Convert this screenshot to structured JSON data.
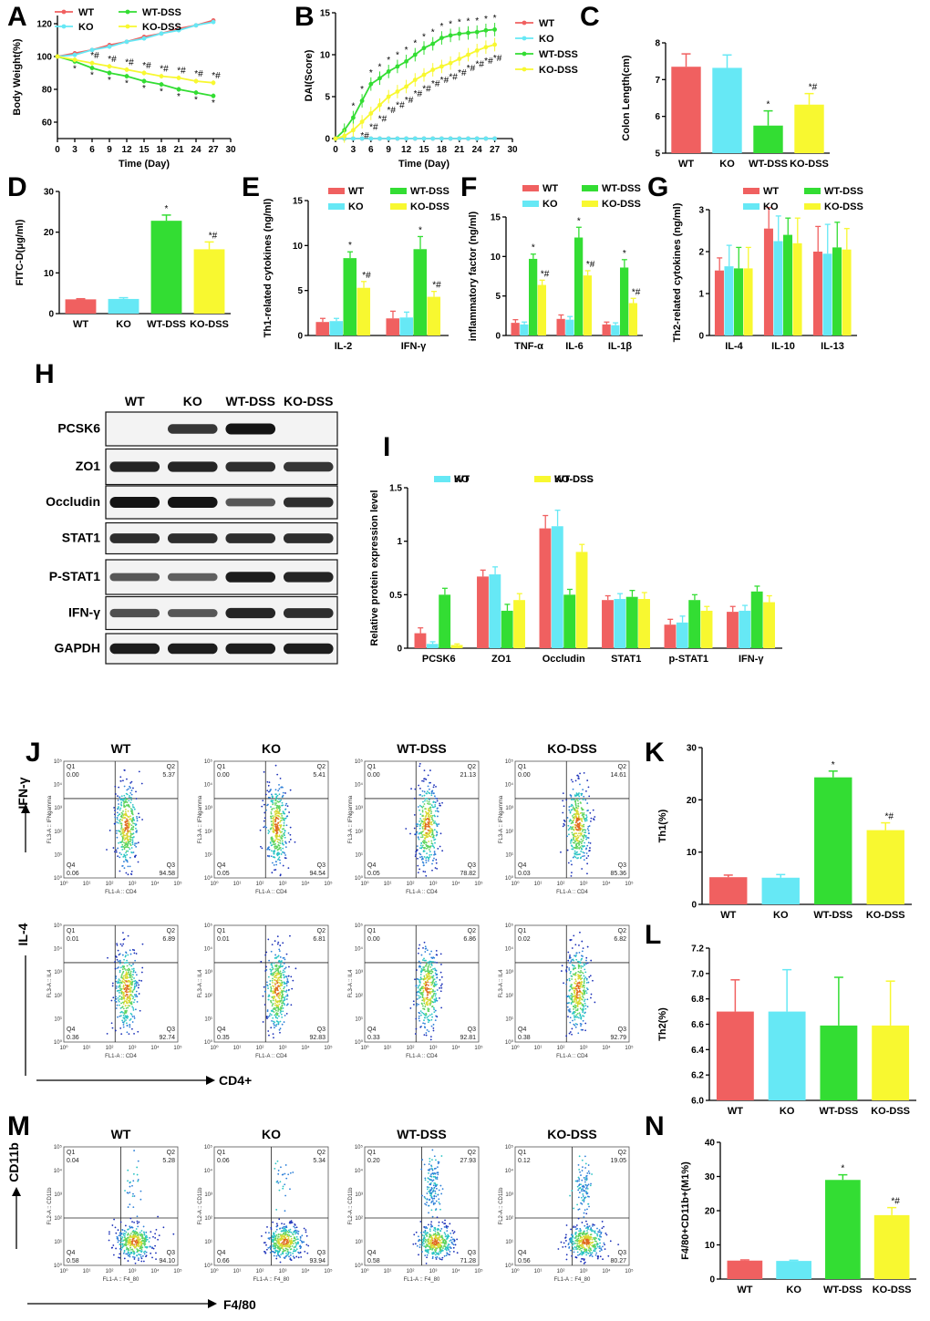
{
  "colors": {
    "WT": "#f06060",
    "KO": "#66e8f5",
    "WT-DSS": "#33dd33",
    "KO-DSS": "#f8f830"
  },
  "groups": [
    "WT",
    "KO",
    "WT-DSS",
    "KO-DSS"
  ],
  "panel_labels": [
    "A",
    "B",
    "C",
    "D",
    "E",
    "F",
    "G",
    "H",
    "I",
    "J",
    "K",
    "L",
    "M",
    "N"
  ],
  "chart_data": [
    {
      "id": "A",
      "type": "line",
      "xlabel": "Time (Day)",
      "ylabel": "Body Weight(%)",
      "xlim": [
        0,
        30
      ],
      "ylim": [
        50,
        125
      ],
      "xticks": [
        0,
        3,
        6,
        9,
        12,
        15,
        18,
        21,
        24,
        27,
        30
      ],
      "yticks": [
        60,
        80,
        100,
        120
      ],
      "x": [
        0,
        3,
        6,
        9,
        12,
        15,
        18,
        21,
        24,
        27
      ],
      "series": [
        {
          "name": "WT",
          "values": [
            100,
            102,
            104,
            107,
            109,
            112,
            114,
            117,
            119,
            122
          ]
        },
        {
          "name": "KO",
          "values": [
            100,
            101,
            104,
            106,
            109,
            111,
            114,
            116,
            119,
            121
          ]
        },
        {
          "name": "WT-DSS",
          "values": [
            100,
            97,
            93,
            90,
            88,
            85,
            83,
            80,
            78,
            76
          ]
        },
        {
          "name": "KO-DSS",
          "values": [
            100,
            98,
            96,
            94,
            92,
            90,
            88,
            87,
            85,
            84
          ]
        }
      ],
      "annotations": [
        "*",
        "*#"
      ]
    },
    {
      "id": "B",
      "type": "line",
      "xlabel": "Time (Day)",
      "ylabel": "DAI(Score)",
      "xlim": [
        0,
        30
      ],
      "ylim": [
        0,
        15
      ],
      "xticks": [
        0,
        3,
        6,
        9,
        12,
        15,
        18,
        21,
        24,
        27,
        30
      ],
      "yticks": [
        0,
        5,
        10,
        15
      ],
      "x": [
        0,
        1.5,
        3,
        4.5,
        6,
        7.5,
        9,
        10.5,
        12,
        13.5,
        15,
        16.5,
        18,
        19.5,
        21,
        22.5,
        24,
        25.5,
        27
      ],
      "series": [
        {
          "name": "WT",
          "values": [
            0,
            0,
            0,
            0,
            0,
            0,
            0,
            0,
            0,
            0,
            0,
            0,
            0,
            0,
            0,
            0,
            0,
            0,
            0
          ]
        },
        {
          "name": "KO",
          "values": [
            0,
            0,
            0,
            0,
            0,
            0,
            0,
            0,
            0,
            0,
            0,
            0,
            0,
            0,
            0,
            0,
            0,
            0,
            0
          ]
        },
        {
          "name": "WT-DSS",
          "values": [
            0,
            1,
            2.5,
            4.5,
            6.5,
            7.2,
            8,
            8.6,
            9.2,
            10,
            10.8,
            11.3,
            12,
            12.3,
            12.5,
            12.6,
            12.7,
            12.9,
            13
          ]
        },
        {
          "name": "KO-DSS",
          "values": [
            0,
            0.3,
            1,
            2,
            3,
            4,
            5,
            5.6,
            6.2,
            7,
            7.6,
            8.2,
            8.6,
            9,
            9.5,
            10,
            10.5,
            10.9,
            11.2
          ]
        }
      ],
      "annotations": [
        "*",
        "*#"
      ]
    },
    {
      "id": "C",
      "type": "bar",
      "categories": [
        "WT",
        "KO",
        "WT-DSS",
        "KO-DSS"
      ],
      "values": [
        7.35,
        7.32,
        5.75,
        6.32
      ],
      "errors": [
        0.35,
        0.35,
        0.4,
        0.3
      ],
      "ylabel": "Colon Length(cm)",
      "ylim": [
        5,
        8
      ],
      "yticks": [
        5,
        6,
        7,
        8
      ],
      "sig": [
        "",
        "",
        "*",
        "*#"
      ]
    },
    {
      "id": "D",
      "type": "bar",
      "categories": [
        "WT",
        "KO",
        "WT-DSS",
        "KO-DSS"
      ],
      "values": [
        3.5,
        3.6,
        22.8,
        15.8
      ],
      "errors": [
        0.15,
        0.3,
        1.4,
        1.8
      ],
      "ylabel": "FITC-D(μg/ml)",
      "ylim": [
        0,
        30
      ],
      "yticks": [
        0,
        10,
        20,
        30
      ],
      "sig": [
        "",
        "",
        "*",
        "*#"
      ]
    },
    {
      "id": "E",
      "type": "bar",
      "categories": [
        "IL-2",
        "IFN-γ"
      ],
      "ylabel": "Th1-related cytokines  (ng/ml)",
      "ylim": [
        0,
        15
      ],
      "yticks": [
        0,
        5,
        10,
        15
      ],
      "series": [
        {
          "name": "WT",
          "values": [
            1.5,
            1.9
          ],
          "errors": [
            0.4,
            0.8
          ]
        },
        {
          "name": "KO",
          "values": [
            1.6,
            2.0
          ],
          "errors": [
            0.3,
            0.6
          ]
        },
        {
          "name": "WT-DSS",
          "values": [
            8.6,
            9.6
          ],
          "errors": [
            0.7,
            1.4
          ]
        },
        {
          "name": "KO-DSS",
          "values": [
            5.3,
            4.3
          ],
          "errors": [
            0.7,
            0.6
          ]
        }
      ],
      "sig": [
        "",
        "",
        "*",
        "*#"
      ]
    },
    {
      "id": "F",
      "type": "bar",
      "categories": [
        "TNF-α",
        "IL-6",
        "IL-1β"
      ],
      "ylabel": "inflammatory factor  (ng/ml)",
      "ylim": [
        0,
        15
      ],
      "yticks": [
        0,
        5,
        10,
        15
      ],
      "series": [
        {
          "name": "WT",
          "values": [
            1.6,
            2.1,
            1.4
          ],
          "errors": [
            0.4,
            0.5,
            0.3
          ]
        },
        {
          "name": "KO",
          "values": [
            1.4,
            2.0,
            1.3
          ],
          "errors": [
            0.3,
            0.4,
            0.3
          ]
        },
        {
          "name": "WT-DSS",
          "values": [
            9.7,
            12.4,
            8.6
          ],
          "errors": [
            0.6,
            1.3,
            1.0
          ]
        },
        {
          "name": "KO-DSS",
          "values": [
            6.4,
            7.6,
            4.1
          ],
          "errors": [
            0.6,
            0.6,
            0.6
          ]
        }
      ],
      "sig": [
        "",
        "",
        "*",
        "*#"
      ]
    },
    {
      "id": "G",
      "type": "bar",
      "categories": [
        "IL-4",
        "IL-10",
        "IL-13"
      ],
      "ylabel": "Th2-related cytokines  (ng/ml)",
      "ylim": [
        0,
        3
      ],
      "yticks": [
        0,
        1,
        2,
        3
      ],
      "series": [
        {
          "name": "WT",
          "values": [
            1.55,
            2.55,
            2.0
          ],
          "errors": [
            0.3,
            0.5,
            0.6
          ]
        },
        {
          "name": "KO",
          "values": [
            1.65,
            2.25,
            1.95
          ],
          "errors": [
            0.5,
            0.6,
            0.7
          ]
        },
        {
          "name": "WT-DSS",
          "values": [
            1.6,
            2.4,
            2.1
          ],
          "errors": [
            0.5,
            0.4,
            0.6
          ]
        },
        {
          "name": "KO-DSS",
          "values": [
            1.6,
            2.2,
            2.05
          ],
          "errors": [
            0.5,
            0.6,
            0.5
          ]
        }
      ]
    },
    {
      "id": "I",
      "type": "bar",
      "categories": [
        "PCSK6",
        "ZO1",
        "Occludin",
        "STAT1",
        "p-STAT1",
        "IFN-γ"
      ],
      "ylabel": "Relative protein expression level",
      "ylim": [
        0,
        1.5
      ],
      "yticks": [
        0.0,
        0.5,
        1.0,
        1.5
      ],
      "series": [
        {
          "name": "WT",
          "values": [
            0.14,
            0.67,
            1.12,
            0.45,
            0.22,
            0.34
          ],
          "errors": [
            0.05,
            0.06,
            0.12,
            0.04,
            0.05,
            0.05
          ]
        },
        {
          "name": "KO",
          "values": [
            0.04,
            0.69,
            1.14,
            0.46,
            0.24,
            0.35
          ],
          "errors": [
            0.02,
            0.07,
            0.15,
            0.05,
            0.06,
            0.05
          ]
        },
        {
          "name": "WT-DSS",
          "values": [
            0.5,
            0.35,
            0.5,
            0.48,
            0.45,
            0.53
          ],
          "errors": [
            0.06,
            0.06,
            0.05,
            0.06,
            0.05,
            0.05
          ]
        },
        {
          "name": "KO-DSS",
          "values": [
            0.03,
            0.45,
            0.9,
            0.46,
            0.35,
            0.43
          ],
          "errors": [
            0.01,
            0.06,
            0.07,
            0.06,
            0.04,
            0.06
          ]
        }
      ]
    },
    {
      "id": "K",
      "type": "bar",
      "categories": [
        "WT",
        "KO",
        "WT-DSS",
        "KO-DSS"
      ],
      "values": [
        5.2,
        5.1,
        24.3,
        14.2
      ],
      "errors": [
        0.4,
        0.6,
        1.2,
        1.4
      ],
      "ylabel": "Th1(%)",
      "ylim": [
        0,
        30
      ],
      "yticks": [
        0,
        10,
        20,
        30
      ],
      "sig": [
        "",
        "",
        "*",
        "*#"
      ]
    },
    {
      "id": "L",
      "type": "bar",
      "categories": [
        "WT",
        "KO",
        "WT-DSS",
        "KO-DSS"
      ],
      "values": [
        6.7,
        6.7,
        6.59,
        6.59
      ],
      "errors": [
        0.25,
        0.33,
        0.38,
        0.35
      ],
      "ylabel": "Th2(%)",
      "ylim": [
        6.0,
        7.2
      ],
      "yticks": [
        6.0,
        6.2,
        6.4,
        6.6,
        6.8,
        7.0,
        7.2
      ]
    },
    {
      "id": "N",
      "type": "bar",
      "categories": [
        "WT",
        "KO",
        "WT-DSS",
        "KO-DSS"
      ],
      "values": [
        5.4,
        5.3,
        29.0,
        18.7
      ],
      "errors": [
        0.2,
        0.2,
        1.5,
        2.2
      ],
      "ylabel": "F4/80+CD11b+(M1%)",
      "ylim": [
        0,
        40
      ],
      "yticks": [
        0,
        10,
        20,
        30,
        40
      ],
      "sig": [
        "",
        "",
        "*",
        "*#"
      ]
    }
  ],
  "blot": {
    "lanes": [
      "WT",
      "KO",
      "WT-DSS",
      "KO-DSS"
    ],
    "rows": [
      {
        "label": "PCSK6",
        "bands": [
          0,
          0.8,
          1.0,
          0
        ]
      },
      {
        "label": "ZO1",
        "bands": [
          0.9,
          0.9,
          0.85,
          0.8
        ]
      },
      {
        "label": "Occludin",
        "bands": [
          1.0,
          1.0,
          0.6,
          0.85
        ]
      },
      {
        "label": "STAT1",
        "bands": [
          0.85,
          0.85,
          0.85,
          0.85
        ]
      },
      {
        "label": "P-STAT1",
        "bands": [
          0.6,
          0.55,
          0.95,
          0.9
        ]
      },
      {
        "label": "IFN-γ",
        "bands": [
          0.65,
          0.6,
          0.9,
          0.85
        ]
      },
      {
        "label": "GAPDH",
        "bands": [
          0.95,
          0.95,
          0.95,
          0.95
        ]
      }
    ]
  },
  "flow": {
    "J_top": {
      "ylabel": "IFN-γ",
      "xaxis": "FL1-A :: CD4",
      "yaxis": "FL3-A :: IFNgamma",
      "plots": [
        {
          "title": "WT",
          "q1": "0.00",
          "q2": "5.37",
          "q3": "94.58",
          "q4": "0.06"
        },
        {
          "title": "KO",
          "q1": "0.00",
          "q2": "5.41",
          "q3": "94.54",
          "q4": "0.05"
        },
        {
          "title": "WT-DSS",
          "q1": "0.00",
          "q2": "21.13",
          "q3": "78.82",
          "q4": "0.05"
        },
        {
          "title": "KO-DSS",
          "q1": "0.00",
          "q2": "14.61",
          "q3": "85.36",
          "q4": "0.03"
        }
      ]
    },
    "J_bottom": {
      "ylabel": "IL-4",
      "xlabel": "CD4+",
      "xaxis": "FL1-A :: CD4",
      "yaxis": "FL3-A :: IL4",
      "plots": [
        {
          "q1": "0.01",
          "q2": "6.89",
          "q3": "92.74",
          "q4": "0.36"
        },
        {
          "q1": "0.01",
          "q2": "6.81",
          "q3": "92.83",
          "q4": "0.35"
        },
        {
          "q1": "0.00",
          "q2": "6.86",
          "q3": "92.81",
          "q4": "0.33"
        },
        {
          "q1": "0.02",
          "q2": "6.82",
          "q3": "92.79",
          "q4": "0.38"
        }
      ]
    },
    "M": {
      "ylabel": "CD11b",
      "xlabel": "F4/80",
      "xaxis": "FL1-A :: F4_80",
      "yaxis": "FL2-A :: CD11b",
      "plots": [
        {
          "title": "WT",
          "q1": "0.04",
          "q2": "5.28",
          "q3": "94.10",
          "q4": "0.58"
        },
        {
          "title": "KO",
          "q1": "0.06",
          "q2": "5.34",
          "q3": "93.94",
          "q4": "0.66"
        },
        {
          "title": "WT-DSS",
          "q1": "0.20",
          "q2": "27.93",
          "q3": "71.28",
          "q4": "0.58"
        },
        {
          "title": "KO-DSS",
          "q1": "0.12",
          "q2": "19.05",
          "q3": "80.27",
          "q4": "0.56"
        }
      ]
    },
    "decades": [
      "10⁰",
      "10¹",
      "10²",
      "10³",
      "10⁴",
      "10⁵"
    ]
  }
}
